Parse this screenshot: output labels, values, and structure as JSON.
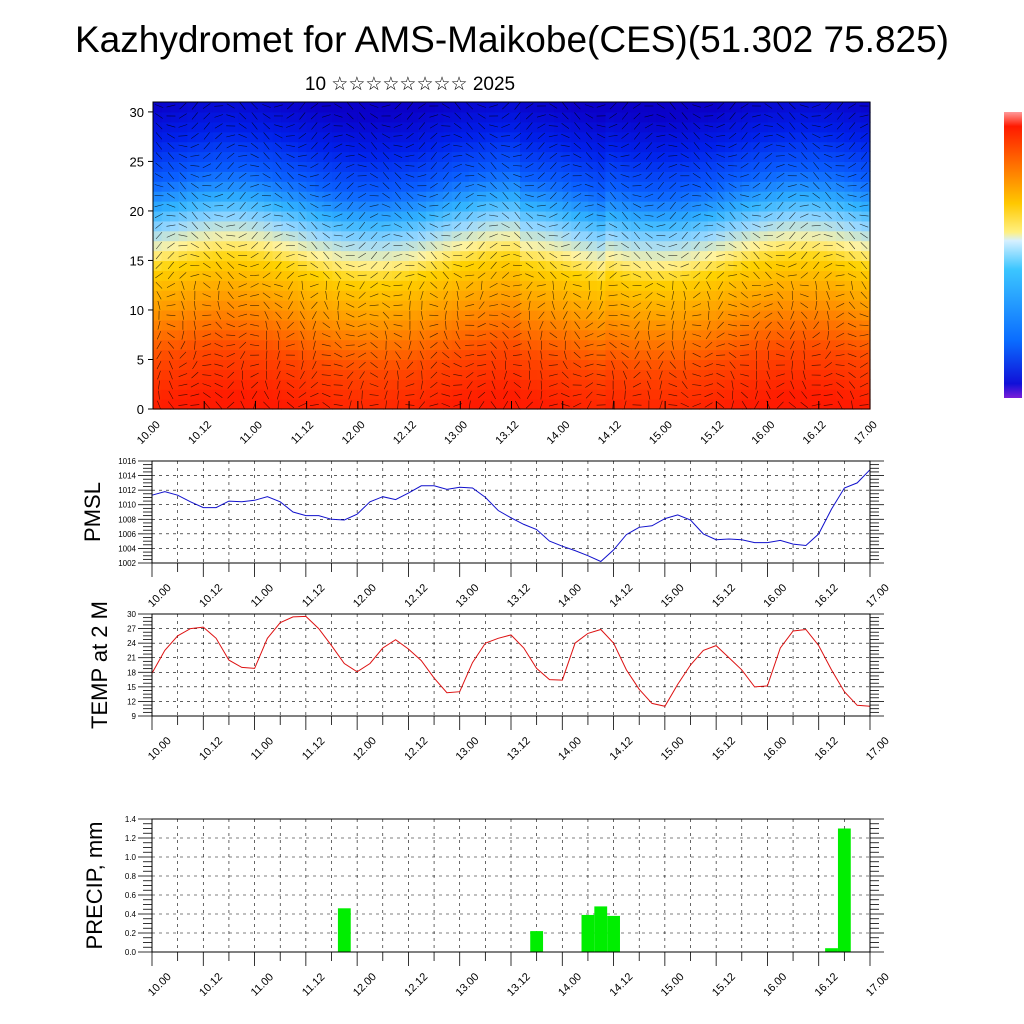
{
  "title": "Kazhydromet for AMS-Maikobe(CES)(51.302 75.825)",
  "subtitle": "10 ☆☆☆☆☆☆☆☆ 2025",
  "time_ticks": [
    "10.00",
    "10.12",
    "11.00",
    "11.12",
    "12.00",
    "12.12",
    "13.00",
    "13.12",
    "14.00",
    "14.12",
    "15.00",
    "15.12",
    "16.00",
    "16.12",
    "17.00"
  ],
  "colors": {
    "pmsl_line": "#1111cc",
    "temp_line": "#dd1111",
    "precip_bar": "#00ee00",
    "frame": "#000000"
  },
  "chart_data": [
    {
      "type": "heatmap",
      "name_hint": "cross-section",
      "ylim": [
        0,
        31
      ],
      "yticks": [
        0,
        5,
        10,
        15,
        20,
        25,
        30
      ],
      "xlim": [
        0,
        168
      ],
      "colorscale": [
        "#ff1a00",
        "#ff5a00",
        "#ff9a00",
        "#ffc800",
        "#fff080",
        "#d6f0ff",
        "#3cc6ff",
        "#0a6cff",
        "#0015e0",
        "#0a00c8"
      ],
      "description_levels": [
        {
          "level": 0,
          "color": "#ff1a00"
        },
        {
          "level": 5,
          "color": "#ff4a00"
        },
        {
          "level": 10,
          "color": "#ff9a00"
        },
        {
          "level": 14,
          "color": "#ffd200"
        },
        {
          "level": 16,
          "color": "#fff3a0"
        },
        {
          "level": 18,
          "color": "#9ad8ff"
        },
        {
          "level": 20,
          "color": "#32b4ff"
        },
        {
          "level": 23,
          "color": "#0a60ff"
        },
        {
          "level": 27,
          "color": "#0020ea"
        },
        {
          "level": 31,
          "color": "#0a00c8"
        }
      ]
    },
    {
      "type": "line",
      "ylabel": "PMSL",
      "ylim": [
        1002,
        1016
      ],
      "yticks": [
        1002,
        1004,
        1006,
        1008,
        1010,
        1012,
        1014,
        1016
      ],
      "x": [
        0,
        3,
        6,
        9,
        12,
        15,
        18,
        21,
        24,
        27,
        30,
        33,
        36,
        39,
        42,
        45,
        48,
        51,
        54,
        57,
        60,
        63,
        66,
        69,
        72,
        75,
        78,
        81,
        84,
        87,
        90,
        93,
        96,
        99,
        102,
        105,
        108,
        111,
        114,
        117,
        120,
        123,
        126,
        129,
        132,
        135,
        138,
        141,
        144,
        147,
        150,
        153,
        156,
        159,
        162,
        165,
        168
      ],
      "values": [
        1011.3,
        1011.8,
        1011.3,
        1010.4,
        1009.6,
        1009.6,
        1010.5,
        1010.4,
        1010.6,
        1011.1,
        1010.4,
        1009.0,
        1008.5,
        1008.5,
        1008.0,
        1007.9,
        1008.7,
        1010.4,
        1011.1,
        1010.7,
        1011.6,
        1012.6,
        1012.6,
        1012.1,
        1012.4,
        1012.3,
        1011.0,
        1009.2,
        1008.2,
        1007.3,
        1006.6,
        1005.0,
        1004.3,
        1003.7,
        1003.0,
        1002.2,
        1003.8,
        1005.9,
        1006.9,
        1007.1,
        1008.1,
        1008.6,
        1007.9,
        1006.0,
        1005.2,
        1005.3,
        1005.2,
        1004.8,
        1004.8,
        1005.1,
        1004.6,
        1004.4,
        1006.0,
        1009.4,
        1012.3,
        1013.0,
        1014.8
      ]
    },
    {
      "type": "line",
      "ylabel": "TEMP at 2 M",
      "ylim": [
        9,
        30
      ],
      "yticks": [
        9,
        12,
        15,
        18,
        21,
        24,
        27,
        30
      ],
      "x": [
        0,
        3,
        6,
        9,
        12,
        15,
        18,
        21,
        24,
        27,
        30,
        33,
        36,
        39,
        42,
        45,
        48,
        51,
        54,
        57,
        60,
        63,
        66,
        69,
        72,
        75,
        78,
        81,
        84,
        87,
        90,
        93,
        96,
        99,
        102,
        105,
        108,
        111,
        114,
        117,
        120,
        123,
        126,
        129,
        132,
        135,
        138,
        141,
        144,
        147,
        150,
        153,
        156,
        159,
        162,
        165,
        168
      ],
      "values": [
        17.8,
        22.5,
        25.5,
        27.0,
        27.3,
        25.0,
        20.5,
        19.0,
        18.8,
        25.0,
        28.2,
        29.4,
        29.5,
        27.0,
        23.5,
        19.8,
        18.1,
        19.8,
        23.0,
        24.7,
        22.8,
        20.4,
        16.8,
        13.8,
        14.0,
        20.0,
        24.0,
        25.0,
        25.7,
        23.0,
        18.8,
        16.5,
        16.4,
        24.0,
        26.0,
        26.8,
        24.0,
        18.5,
        14.5,
        11.6,
        11.0,
        15.5,
        19.5,
        22.5,
        23.5,
        21.0,
        18.5,
        15.0,
        15.2,
        23.0,
        26.5,
        26.8,
        23.5,
        18.5,
        14.0,
        11.2,
        11.0
      ]
    },
    {
      "type": "bar",
      "ylabel": "PRECIP, mm",
      "ylim": [
        0,
        1.4
      ],
      "yticks": [
        0.0,
        0.2,
        0.4,
        0.6,
        0.8,
        1.0,
        1.2,
        1.4
      ],
      "bar_width": 3,
      "x": [
        45,
        90,
        102,
        105,
        108,
        159,
        162
      ],
      "values": [
        0.46,
        0.22,
        0.39,
        0.48,
        0.38,
        0.04,
        1.3
      ]
    }
  ]
}
